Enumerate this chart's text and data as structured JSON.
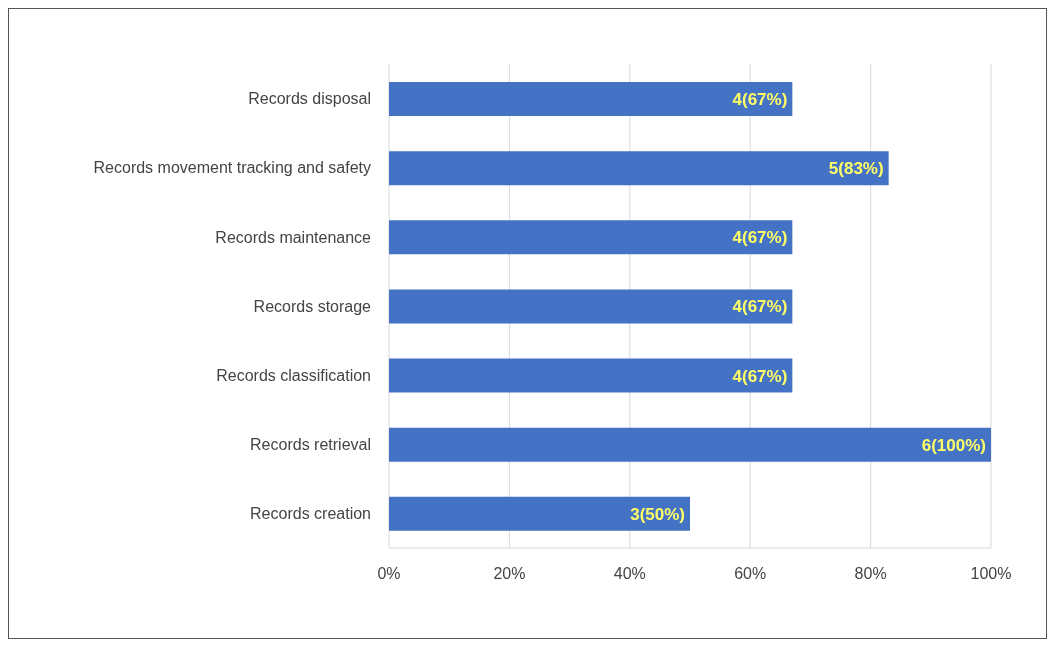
{
  "chart_data": {
    "type": "bar",
    "orientation": "horizontal",
    "categories": [
      "Records disposal",
      "Records movement tracking and safety",
      "Records maintenance ",
      "Records storage",
      "Records classification",
      "Records retrieval",
      "Records creation"
    ],
    "values": [
      67,
      83,
      67,
      67,
      67,
      100,
      50
    ],
    "value_labels": [
      "4(67%)",
      "5(83%)",
      "4(67%)",
      "4(67%)",
      "4(67%)",
      "6(100%)",
      "3(50%)"
    ],
    "color": "#4472c4",
    "xlim": [
      0,
      100
    ],
    "xticks": [
      {
        "value": 0,
        "label": "0%"
      },
      {
        "value": 20,
        "label": "20%"
      },
      {
        "value": 40,
        "label": "40%"
      },
      {
        "value": 60,
        "label": "60%"
      },
      {
        "value": 80,
        "label": "80%"
      },
      {
        "value": 100,
        "label": "100%"
      }
    ],
    "grid": "x"
  }
}
